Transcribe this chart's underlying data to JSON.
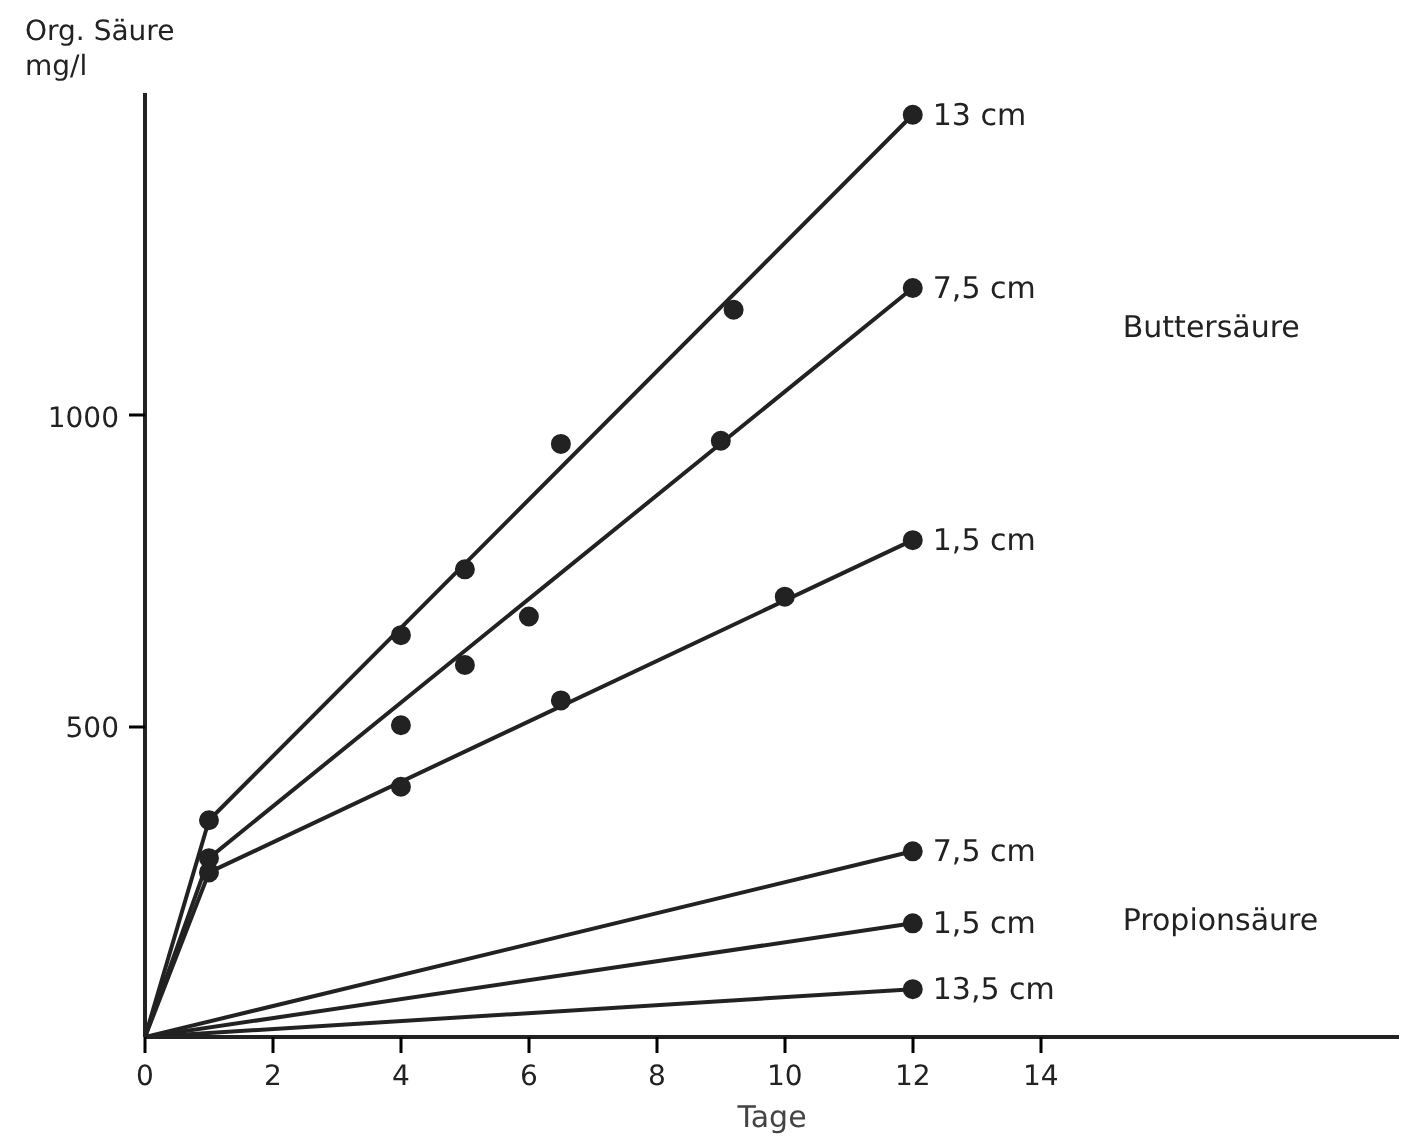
{
  "chart_data": {
    "type": "line",
    "xlabel": "Tage",
    "ylabel": "Org. Säure\nmg/l",
    "xlim": [
      0,
      19.6
    ],
    "ylim": [
      0,
      1520
    ],
    "xticks": [
      0,
      2,
      4,
      6,
      8,
      10,
      12,
      14
    ],
    "yticks": [
      500,
      1000
    ],
    "grid": false,
    "line_style": "solid",
    "series": [
      {
        "name": "13 cm",
        "color": "#222222",
        "x": [
          0,
          1,
          12
        ],
        "values": [
          0,
          349,
          1485
        ]
      },
      {
        "name": "7,5 cm",
        "color": "#222222",
        "x": [
          0,
          1,
          12
        ],
        "values": [
          0,
          288,
          1206
        ]
      },
      {
        "name": "1,5 cm",
        "color": "#222222",
        "x": [
          0,
          1,
          12
        ],
        "values": [
          0,
          265,
          800
        ]
      },
      {
        "name": "7,5 cm",
        "color": "#222222",
        "x": [
          0,
          12
        ],
        "values": [
          0,
          299
        ]
      },
      {
        "name": "1,5 cm",
        "color": "#222222",
        "x": [
          0,
          12
        ],
        "values": [
          0,
          183
        ]
      },
      {
        "name": "13,5 cm",
        "color": "#222222",
        "x": [
          0,
          12
        ],
        "values": [
          0,
          77
        ]
      },
      {
        "type": "scatter",
        "marker": "circle",
        "color": "#222222",
        "x": [
          1,
          4,
          5,
          6.5,
          9.2,
          12,
          1,
          4,
          5,
          6,
          9,
          12,
          1,
          4,
          6.5,
          10,
          12,
          12,
          12,
          12
        ],
        "values": [
          349,
          647,
          753,
          955,
          1171,
          1485,
          288,
          502,
          599,
          677,
          960,
          1206,
          265,
          403,
          542,
          709,
          800,
          299,
          183,
          77
        ]
      }
    ],
    "annotations": [
      "Buttersäure",
      "Propionsäure"
    ]
  }
}
